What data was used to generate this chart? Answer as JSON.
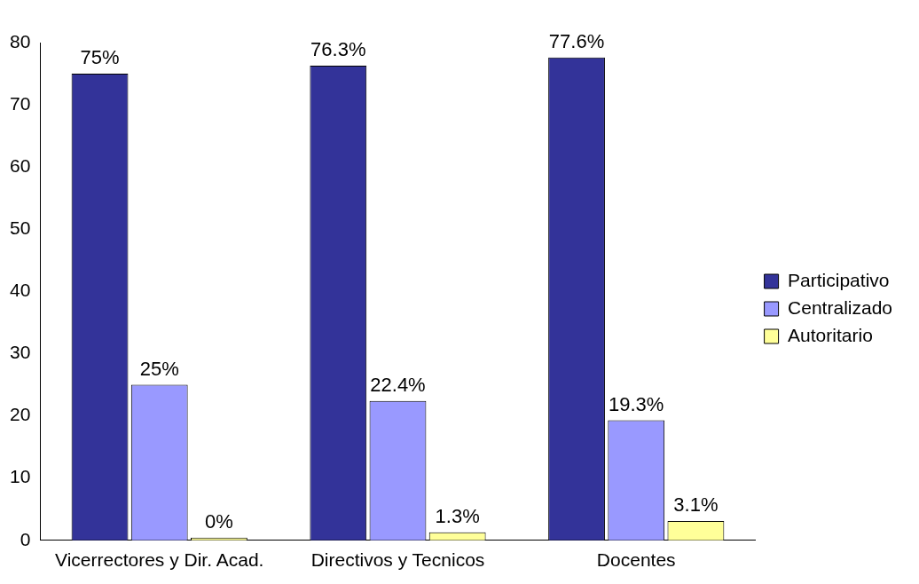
{
  "chart_data": {
    "type": "bar",
    "categories": [
      "Vicerrectores y Dir. Acad.",
      "Directivos y Tecnicos",
      "Docentes"
    ],
    "series": [
      {
        "name": "Participativo",
        "color": "#333399",
        "values": [
          75,
          76.3,
          77.6
        ],
        "value_labels": [
          "75%",
          "76.3%",
          "77.6%"
        ]
      },
      {
        "name": "Centralizado",
        "color": "#9999ff",
        "values": [
          25,
          22.4,
          19.3
        ],
        "value_labels": [
          "25%",
          "22.4%",
          "19.3%"
        ]
      },
      {
        "name": "Autoritario",
        "color": "#ffff99",
        "values": [
          0,
          1.3,
          3.1
        ],
        "value_labels": [
          "0%",
          "1.3%",
          "3.1%"
        ]
      }
    ],
    "ylim": [
      0,
      80
    ],
    "yticks": [
      0,
      10,
      20,
      30,
      40,
      50,
      60,
      70,
      80
    ],
    "grid": false,
    "legend": "right"
  }
}
